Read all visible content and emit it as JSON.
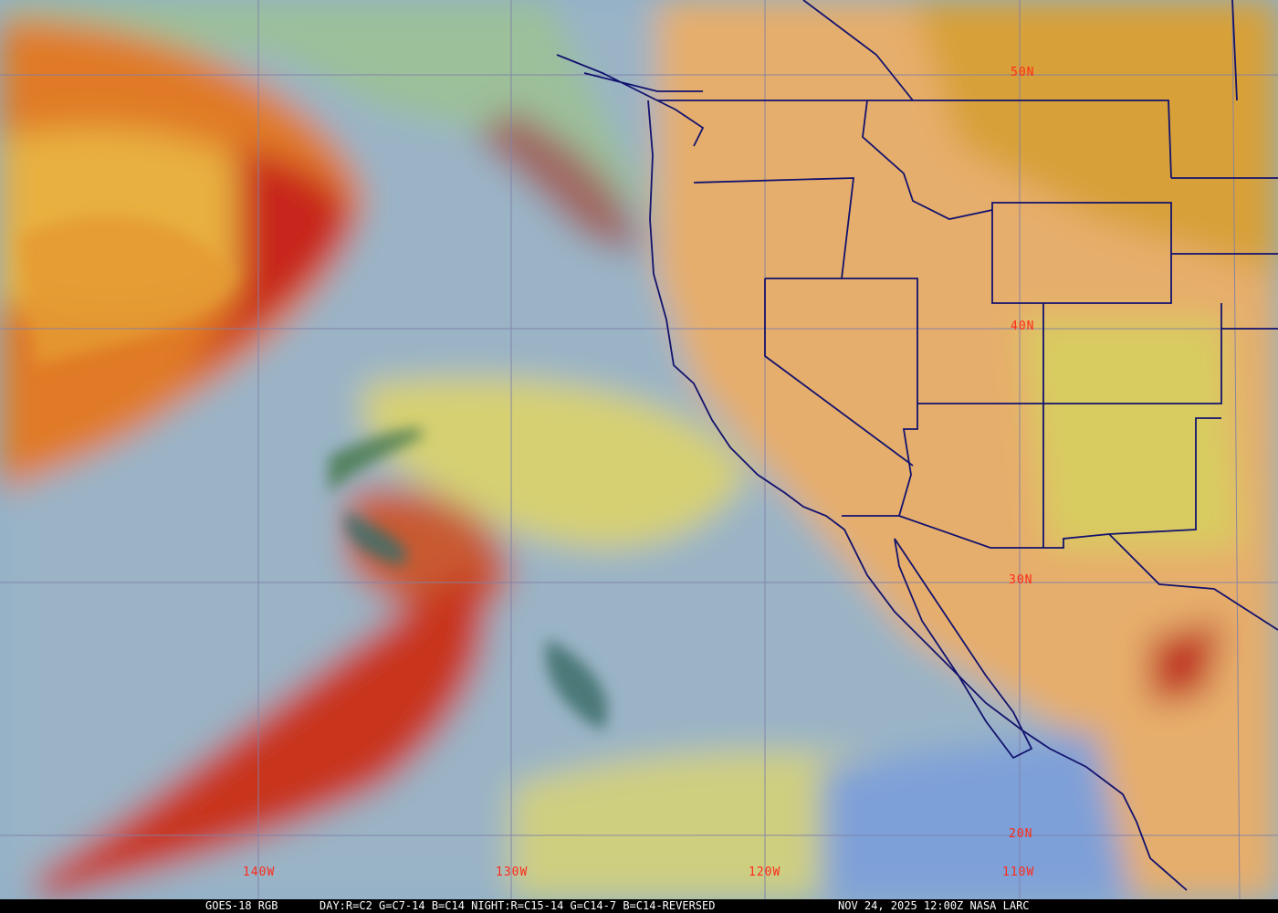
{
  "image": {
    "type": "satellite-rgb-composite",
    "colors": {
      "ocean_clear": "#8fb0c8",
      "land": "#e6b070",
      "high_cloud": "#c8281c",
      "low_cloud": "#d8d070",
      "border": "#10106a",
      "grid": "#8080a0",
      "label": "#ff2a1a"
    }
  },
  "latitude_labels": [
    "50N",
    "40N",
    "30N",
    "20N"
  ],
  "longitude_labels": [
    "140W",
    "130W",
    "120W",
    "110W"
  ],
  "caption": {
    "satellite": "GOES-18 RGB",
    "recipe": "DAY:R=C2 G=C7-14 B=C14 NIGHT:R=C15-14 G=C14-7 B=C14-REVERSED",
    "timestamp": "NOV 24, 2025 12:00Z NASA LARC"
  }
}
